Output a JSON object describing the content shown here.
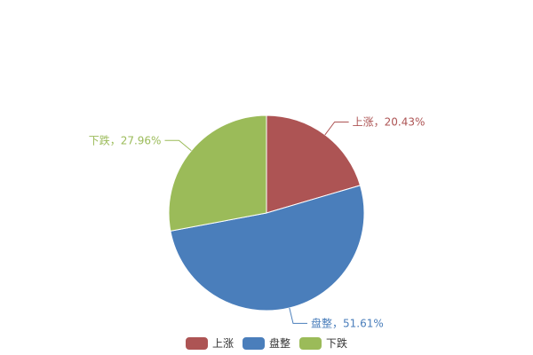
{
  "chart_data": {
    "type": "pie",
    "start": "top",
    "direction": "clockwise",
    "legend_position": "bottom",
    "slices": [
      {
        "name": "上涨",
        "value": 20.43,
        "label": "上涨，20.43%",
        "color": "#AD5454"
      },
      {
        "name": "盘整",
        "value": 51.61,
        "label": "盘整，51.61%",
        "color": "#4A7EBB"
      },
      {
        "name": "下跌",
        "value": 27.96,
        "label": "下跌，27.96%",
        "color": "#9BBB59"
      }
    ]
  }
}
